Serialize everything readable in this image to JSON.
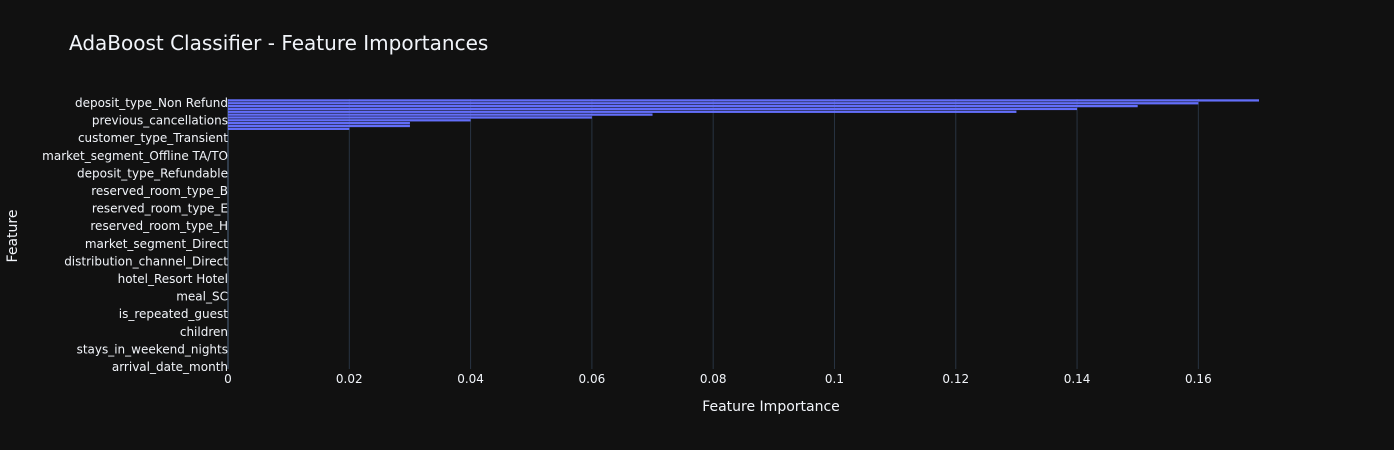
{
  "chart_data": {
    "type": "bar",
    "orientation": "horizontal",
    "title": "AdaBoost Classifier - Feature Importances",
    "xlabel": "Feature Importance",
    "ylabel": "Feature",
    "xlim": [
      0,
      0.17
    ],
    "x_ticks": [
      "0",
      "0.02",
      "0.04",
      "0.06",
      "0.08",
      "0.1",
      "0.12",
      "0.14",
      "0.16"
    ],
    "x_tick_values": [
      0,
      0.02,
      0.04,
      0.06,
      0.08,
      0.1,
      0.12,
      0.14,
      0.16
    ],
    "grid": true,
    "bar_color": "#636efa",
    "y_tick_labels": [
      "deposit_type_Non Refund",
      "previous_cancellations",
      "customer_type_Transient",
      "market_segment_Offline TA/TO",
      "deposit_type_Refundable",
      "reserved_room_type_B",
      "reserved_room_type_E",
      "reserved_room_type_H",
      "market_segment_Direct",
      "distribution_channel_Direct",
      "hotel_Resort Hotel",
      "meal_SC",
      "is_repeated_guest",
      "children",
      "stays_in_weekend_nights",
      "arrival_date_month"
    ],
    "values": [
      0.17,
      0.16,
      0.15,
      0.14,
      0.13,
      0.07,
      0.06,
      0.04,
      0.03,
      0.03,
      0.02,
      0,
      0,
      0,
      0,
      0,
      0,
      0,
      0,
      0,
      0,
      0,
      0,
      0,
      0,
      0,
      0,
      0,
      0,
      0,
      0,
      0,
      0,
      0,
      0,
      0,
      0,
      0,
      0,
      0,
      0,
      0,
      0,
      0,
      0,
      0,
      0,
      0,
      0,
      0,
      0,
      0,
      0,
      0,
      0,
      0,
      0,
      0,
      0,
      0,
      0,
      0,
      0,
      0,
      0,
      0,
      0,
      0,
      0,
      0,
      0,
      0,
      0,
      0,
      0,
      0,
      0,
      0,
      0,
      0,
      0,
      0,
      0,
      0,
      0,
      0,
      0,
      0,
      0,
      0,
      0,
      0,
      0,
      0,
      0
    ]
  }
}
